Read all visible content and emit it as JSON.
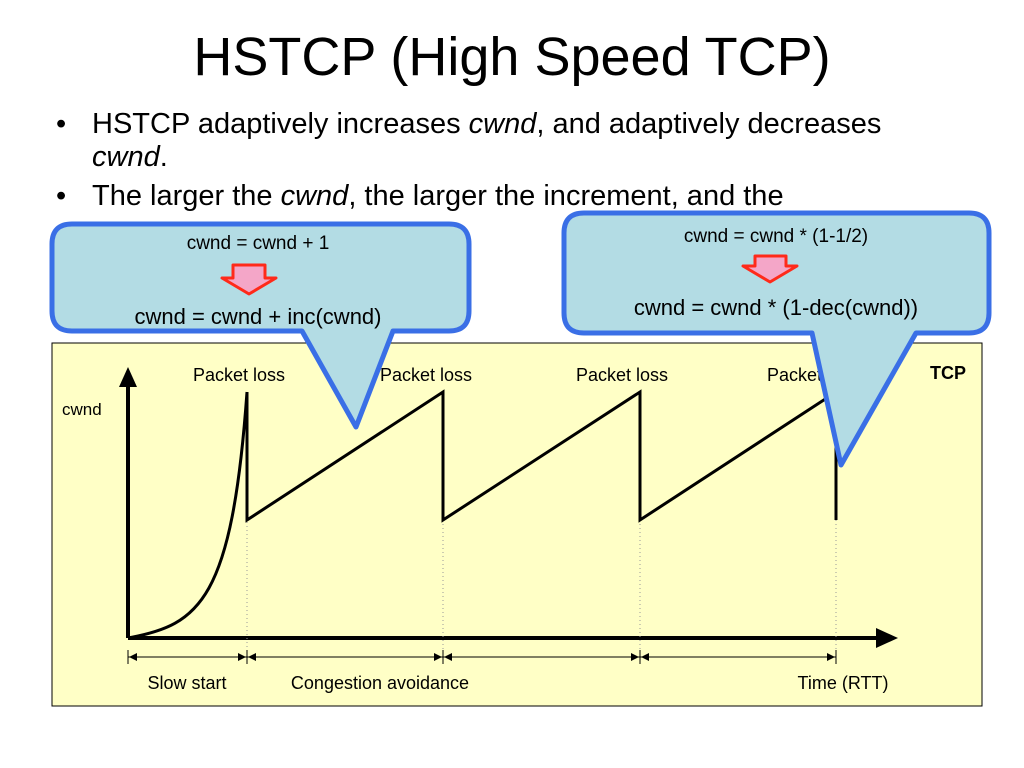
{
  "title": "HSTCP (High Speed TCP)",
  "bullets": [
    {
      "before": "HSTCP adaptively increases ",
      "em1": "cwnd",
      "middle": ", and adaptively decreases ",
      "em2": "cwnd",
      "after": "."
    },
    {
      "before": "The larger the ",
      "em1": "cwnd",
      "middle": ", the larger the increment, and the",
      "em2": "",
      "after": ""
    }
  ],
  "callout_left": {
    "line1": "cwnd = cwnd + 1",
    "line2": "cwnd = cwnd + inc(cwnd)"
  },
  "callout_right": {
    "line1": "cwnd = cwnd * (1-1/2)",
    "line2": "cwnd = cwnd * (1-dec(cwnd))"
  },
  "plot": {
    "y_label": "cwnd",
    "corner_label": "TCP",
    "loss_labels": [
      "Packet loss",
      "Packet loss",
      "Packet loss",
      "Packet loss"
    ],
    "phase_labels": [
      "Slow start",
      "Congestion avoidance"
    ],
    "x_label": "Time (RTT)"
  },
  "colors": {
    "panel_fill": "#ffffc6",
    "callout_fill": "#b3dce4",
    "callout_border": "#3a6fe6",
    "arrow_fill": "#f4a6c8",
    "arrow_border": "#ff2a1a"
  }
}
